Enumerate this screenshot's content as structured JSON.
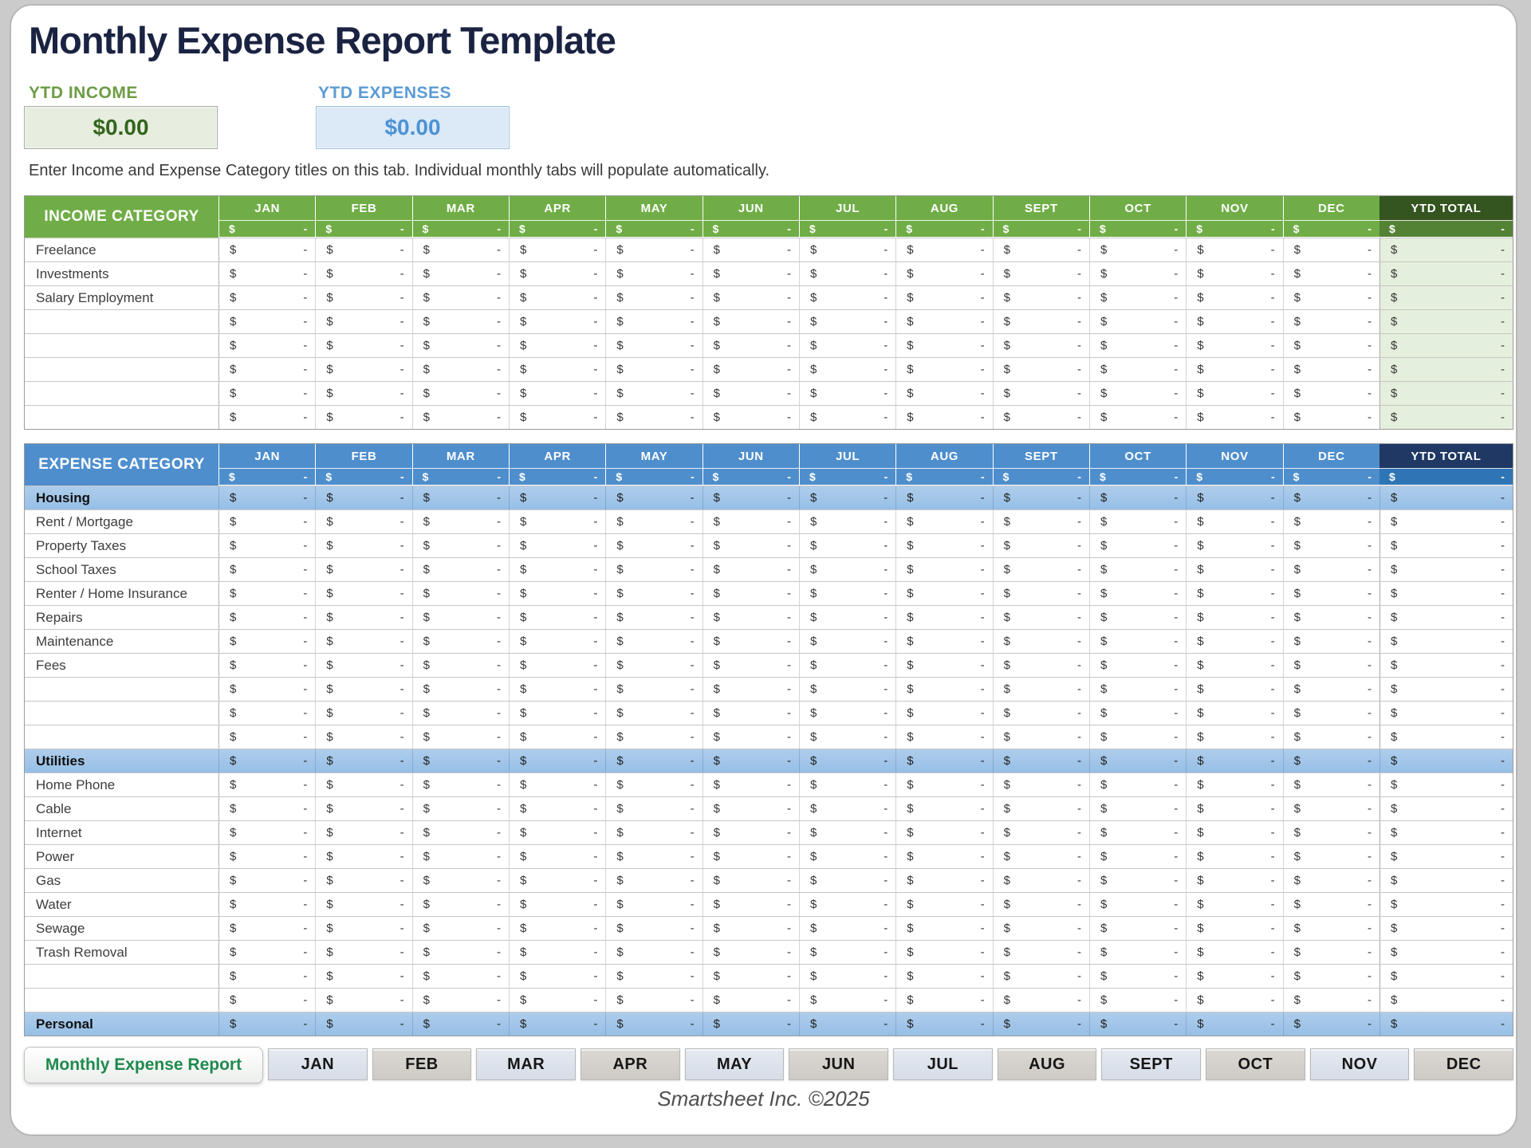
{
  "page": {
    "title": "Monthly Expense Report Template",
    "footer": "Smartsheet Inc. ©2025",
    "instruction": "Enter Income and Expense Category titles on this tab.  Individual monthly tabs will populate automatically."
  },
  "summary": {
    "income_label": "YTD INCOME",
    "income_value": "$0.00",
    "expenses_label": "YTD EXPENSES",
    "expenses_value": "$0.00"
  },
  "months": [
    "JAN",
    "FEB",
    "MAR",
    "APR",
    "MAY",
    "JUN",
    "JUL",
    "AUG",
    "SEPT",
    "OCT",
    "NOV",
    "DEC"
  ],
  "cell": {
    "currency": "$",
    "placeholder": "-"
  },
  "income_table": {
    "category_header": "INCOME CATEGORY",
    "ytd_header": "YTD TOTAL",
    "rows": [
      {
        "label": "Freelance",
        "type": "item"
      },
      {
        "label": "Investments",
        "type": "item"
      },
      {
        "label": "Salary Employment",
        "type": "item"
      },
      {
        "label": "",
        "type": "item"
      },
      {
        "label": "",
        "type": "item"
      },
      {
        "label": "",
        "type": "item"
      },
      {
        "label": "",
        "type": "item"
      },
      {
        "label": "",
        "type": "item"
      }
    ]
  },
  "expense_table": {
    "category_header": "EXPENSE CATEGORY",
    "ytd_header": "YTD TOTAL",
    "rows": [
      {
        "label": "Housing",
        "type": "section"
      },
      {
        "label": "Rent / Mortgage",
        "type": "item"
      },
      {
        "label": "Property Taxes",
        "type": "item"
      },
      {
        "label": "School Taxes",
        "type": "item"
      },
      {
        "label": "Renter / Home Insurance",
        "type": "item"
      },
      {
        "label": "Repairs",
        "type": "item"
      },
      {
        "label": "Maintenance",
        "type": "item"
      },
      {
        "label": "Fees",
        "type": "item"
      },
      {
        "label": "",
        "type": "item"
      },
      {
        "label": "",
        "type": "item"
      },
      {
        "label": "",
        "type": "item"
      },
      {
        "label": "Utilities",
        "type": "section"
      },
      {
        "label": "Home Phone",
        "type": "item"
      },
      {
        "label": "Cable",
        "type": "item"
      },
      {
        "label": "Internet",
        "type": "item"
      },
      {
        "label": "Power",
        "type": "item"
      },
      {
        "label": "Gas",
        "type": "item"
      },
      {
        "label": "Water",
        "type": "item"
      },
      {
        "label": "Sewage",
        "type": "item"
      },
      {
        "label": "Trash Removal",
        "type": "item"
      },
      {
        "label": "",
        "type": "item"
      },
      {
        "label": "",
        "type": "item"
      },
      {
        "label": "Personal",
        "type": "section"
      }
    ]
  },
  "tabs": {
    "active": "Monthly Expense Report",
    "months": [
      "JAN",
      "FEB",
      "MAR",
      "APR",
      "MAY",
      "JUN",
      "JUL",
      "AUG",
      "SEPT",
      "OCT",
      "NOV",
      "DEC"
    ]
  },
  "colors": {
    "title_navy": "#1b2342",
    "income_green_header": "#70ad47",
    "income_green_dark": "#345420",
    "income_green_mid": "#548235",
    "income_ytd_cell": "#e5efdd",
    "income_box_bg": "#e7eedf",
    "income_value_text": "#33651e",
    "income_label_text": "#6d9c45",
    "expense_blue_header": "#4e8ecd",
    "expense_navy_header": "#1f3864",
    "expense_blue_mid": "#2e75b6",
    "expense_section_blue": "#9fc5e8",
    "expense_label_text": "#5b9bd5",
    "expense_box_bg": "#dce9f7",
    "active_tab_text": "#1f8a4d"
  }
}
